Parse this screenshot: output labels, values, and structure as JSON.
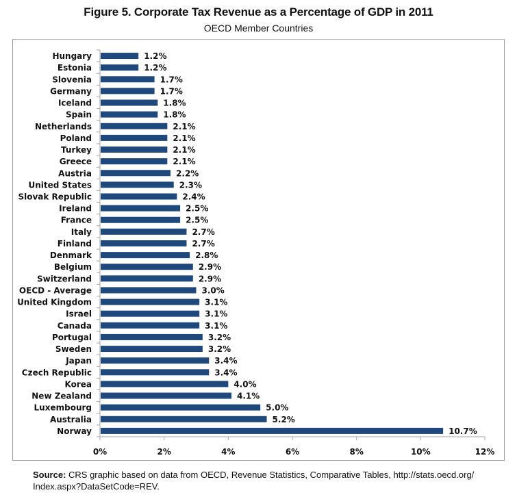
{
  "chart_data": {
    "type": "bar",
    "orientation": "horizontal",
    "title": "Figure 5. Corporate Tax Revenue as a Percentage of GDP in 2011",
    "subtitle": "OECD Member Countries",
    "xlabel": "",
    "ylabel": "",
    "xlim": [
      0,
      12
    ],
    "x_ticks": [
      0,
      2,
      4,
      6,
      8,
      10,
      12
    ],
    "x_tick_labels": [
      "0%",
      "2%",
      "4%",
      "6%",
      "8%",
      "10%",
      "12%"
    ],
    "grid": false,
    "legend": "none",
    "bar_color": "#1f497d",
    "categories": [
      "Hungary",
      "Estonia",
      "Slovenia",
      "Germany",
      "Iceland",
      "Spain",
      "Netherlands",
      "Poland",
      "Turkey",
      "Greece",
      "Austria",
      "United States",
      "Slovak Republic",
      "Ireland",
      "France",
      "Italy",
      "Finland",
      "Denmark",
      "Belgium",
      "Switzerland",
      "OECD - Average",
      "United Kingdom",
      "Israel",
      "Canada",
      "Portugal",
      "Sweden",
      "Japan",
      "Czech Republic",
      "Korea",
      "New Zealand",
      "Luxembourg",
      "Australia",
      "Norway"
    ],
    "values": [
      1.2,
      1.2,
      1.7,
      1.7,
      1.8,
      1.8,
      2.1,
      2.1,
      2.1,
      2.1,
      2.2,
      2.3,
      2.4,
      2.5,
      2.5,
      2.7,
      2.7,
      2.8,
      2.9,
      2.9,
      3.0,
      3.1,
      3.1,
      3.1,
      3.2,
      3.2,
      3.4,
      3.4,
      4.0,
      4.1,
      5.0,
      5.2,
      10.7
    ],
    "data_labels": [
      "1.2%",
      "1.2%",
      "1.7%",
      "1.7%",
      "1.8%",
      "1.8%",
      "2.1%",
      "2.1%",
      "2.1%",
      "2.1%",
      "2.2%",
      "2.3%",
      "2.4%",
      "2.5%",
      "2.5%",
      "2.7%",
      "2.7%",
      "2.8%",
      "2.9%",
      "2.9%",
      "3.0%",
      "3.1%",
      "3.1%",
      "3.1%",
      "3.2%",
      "3.2%",
      "3.4%",
      "3.4%",
      "4.0%",
      "4.1%",
      "5.0%",
      "5.2%",
      "10.7%"
    ]
  },
  "source": {
    "label": "Source:",
    "text": " CRS graphic based on data from OECD, Revenue Statistics, Comparative Tables, http://stats.oecd.org/ Index.aspx?DataSetCode=REV."
  }
}
